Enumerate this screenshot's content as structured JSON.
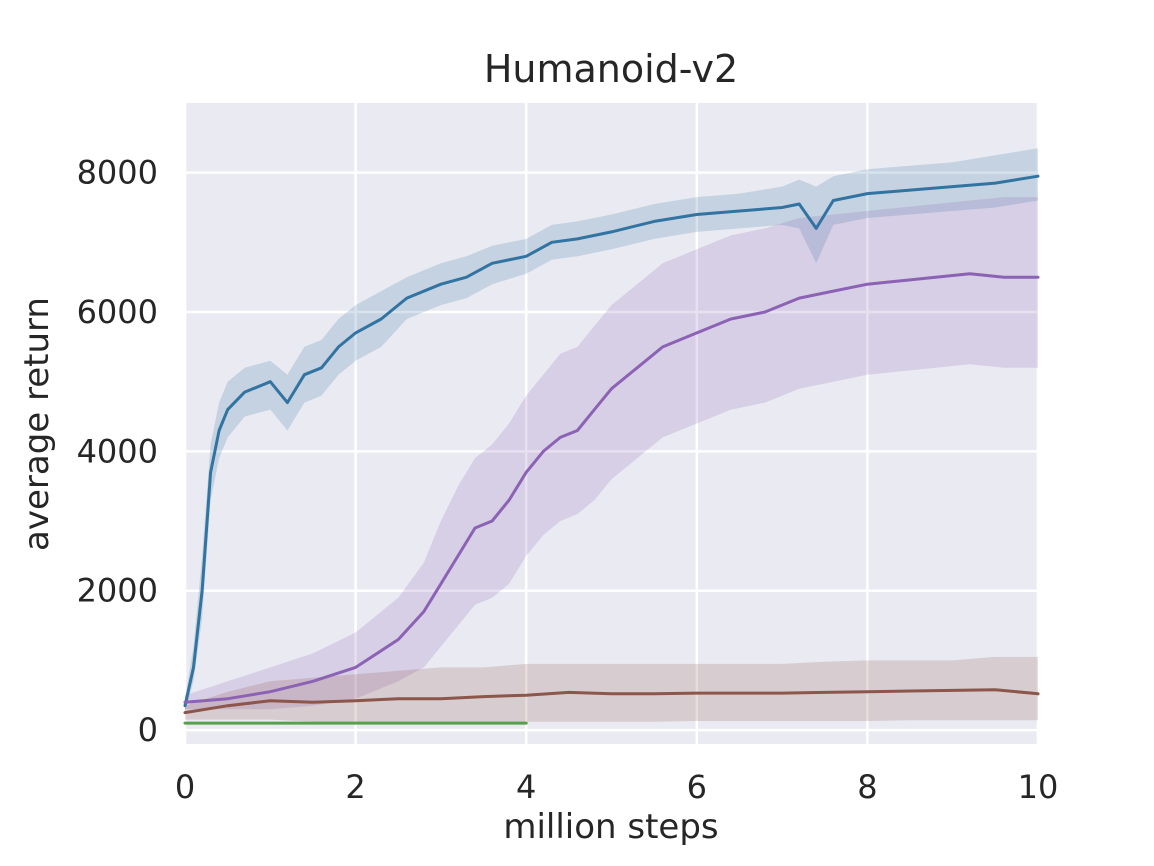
{
  "chart_data": {
    "type": "line",
    "title": "Humanoid-v2",
    "xlabel": "million steps",
    "ylabel": "average return",
    "xlim": [
      0,
      10
    ],
    "ylim": [
      -200,
      9000
    ],
    "xticks": [
      0,
      2,
      4,
      6,
      8,
      10
    ],
    "yticks": [
      0,
      2000,
      4000,
      6000,
      8000
    ],
    "grid": true,
    "background": "#eaeaf2",
    "series": [
      {
        "color": "#3274a1",
        "band_color": "#3274a1",
        "x": [
          0,
          0.1,
          0.2,
          0.3,
          0.4,
          0.5,
          0.7,
          1.0,
          1.2,
          1.4,
          1.6,
          1.8,
          2.0,
          2.3,
          2.6,
          3.0,
          3.3,
          3.6,
          4.0,
          4.3,
          4.6,
          5.0,
          5.5,
          6.0,
          6.5,
          7.0,
          7.2,
          7.4,
          7.6,
          8.0,
          8.5,
          9.0,
          9.5,
          10.0
        ],
        "y": [
          350,
          900,
          2000,
          3700,
          4300,
          4600,
          4850,
          5000,
          4700,
          5100,
          5200,
          5500,
          5700,
          5900,
          6200,
          6400,
          6500,
          6700,
          6800,
          7000,
          7050,
          7150,
          7300,
          7400,
          7450,
          7500,
          7550,
          7200,
          7600,
          7700,
          7750,
          7800,
          7850,
          7950
        ],
        "band_upper": [
          450,
          1200,
          2500,
          4100,
          4700,
          5000,
          5200,
          5300,
          5100,
          5500,
          5600,
          5900,
          6100,
          6300,
          6500,
          6700,
          6800,
          6950,
          7050,
          7250,
          7300,
          7400,
          7550,
          7650,
          7700,
          7800,
          7900,
          7800,
          7950,
          8050,
          8100,
          8150,
          8250,
          8350
        ],
        "band_lower": [
          250,
          700,
          1600,
          3300,
          3900,
          4200,
          4500,
          4600,
          4300,
          4700,
          4800,
          5100,
          5300,
          5500,
          5900,
          6100,
          6200,
          6400,
          6550,
          6750,
          6800,
          6900,
          7050,
          7150,
          7200,
          7250,
          7200,
          6700,
          7250,
          7350,
          7400,
          7450,
          7500,
          7600
        ]
      },
      {
        "color": "#8c62b5",
        "band_color": "#8c62b5",
        "x": [
          0,
          0.5,
          1.0,
          1.5,
          2.0,
          2.5,
          2.8,
          3.0,
          3.2,
          3.4,
          3.6,
          3.8,
          4.0,
          4.2,
          4.4,
          4.6,
          4.8,
          5.0,
          5.3,
          5.6,
          6.0,
          6.4,
          6.8,
          7.2,
          7.6,
          8.0,
          8.4,
          8.8,
          9.2,
          9.6,
          10.0
        ],
        "y": [
          400,
          450,
          550,
          700,
          900,
          1300,
          1700,
          2100,
          2500,
          2900,
          3000,
          3300,
          3700,
          4000,
          4200,
          4300,
          4600,
          4900,
          5200,
          5500,
          5700,
          5900,
          6000,
          6200,
          6300,
          6400,
          6450,
          6500,
          6550,
          6500,
          6500
        ],
        "band_upper": [
          500,
          700,
          900,
          1100,
          1400,
          1900,
          2400,
          3000,
          3500,
          3900,
          4100,
          4400,
          4800,
          5100,
          5400,
          5500,
          5800,
          6100,
          6400,
          6700,
          6900,
          7100,
          7200,
          7350,
          7400,
          7450,
          7500,
          7550,
          7600,
          7650,
          7650
        ],
        "band_lower": [
          300,
          300,
          300,
          350,
          450,
          700,
          900,
          1200,
          1500,
          1800,
          1900,
          2100,
          2500,
          2800,
          3000,
          3100,
          3300,
          3600,
          3900,
          4200,
          4400,
          4600,
          4700,
          4900,
          5000,
          5100,
          5150,
          5200,
          5250,
          5200,
          5200
        ]
      },
      {
        "color": "#8c564b",
        "band_color": "#8c564b",
        "x": [
          0,
          0.5,
          1.0,
          1.5,
          2.0,
          2.5,
          3.0,
          3.5,
          4.0,
          4.5,
          5.0,
          5.5,
          6.0,
          6.5,
          7.0,
          7.5,
          8.0,
          8.5,
          9.0,
          9.5,
          10.0
        ],
        "y": [
          250,
          350,
          420,
          400,
          420,
          450,
          450,
          480,
          500,
          540,
          520,
          520,
          530,
          530,
          530,
          540,
          550,
          560,
          570,
          580,
          520
        ],
        "band_upper": [
          350,
          550,
          700,
          750,
          800,
          850,
          900,
          900,
          950,
          950,
          950,
          950,
          950,
          950,
          950,
          980,
          1000,
          1000,
          1000,
          1050,
          1050
        ],
        "band_lower": [
          150,
          150,
          150,
          120,
          100,
          100,
          100,
          100,
          120,
          120,
          120,
          120,
          130,
          130,
          130,
          130,
          130,
          140,
          140,
          140,
          140
        ]
      },
      {
        "color": "#55a24a",
        "x": [
          0,
          1.0,
          2.0,
          3.0,
          4.0
        ],
        "y": [
          100,
          100,
          100,
          100,
          100
        ]
      }
    ]
  }
}
